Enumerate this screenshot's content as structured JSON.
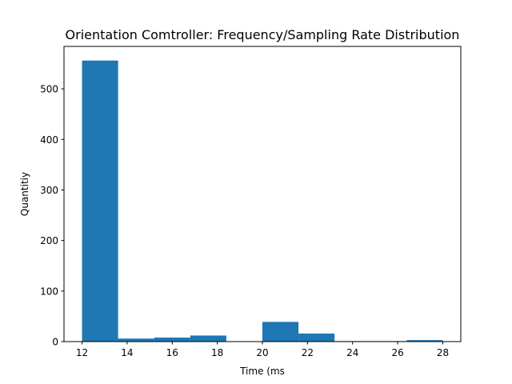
{
  "chart_data": {
    "type": "bar",
    "title": "Orientation Comtroller: Frequency/Sampling Rate Distribution",
    "xlabel": "Time (ms",
    "ylabel": "Quantitiy",
    "xlim": [
      11.2,
      28.8
    ],
    "ylim": [
      0,
      584
    ],
    "xticks": [
      12,
      14,
      16,
      18,
      20,
      22,
      24,
      26,
      28
    ],
    "yticks": [
      0,
      100,
      200,
      300,
      400,
      500
    ],
    "bin_edges": [
      12,
      13.6,
      15.2,
      16.8,
      18.4,
      20,
      21.6,
      23.2,
      24.8,
      26.4,
      28
    ],
    "values": [
      556,
      6,
      8,
      12,
      0,
      39,
      16,
      1,
      1,
      3
    ],
    "bar_color": "#1f77b4",
    "grid": false,
    "legend": "none"
  }
}
